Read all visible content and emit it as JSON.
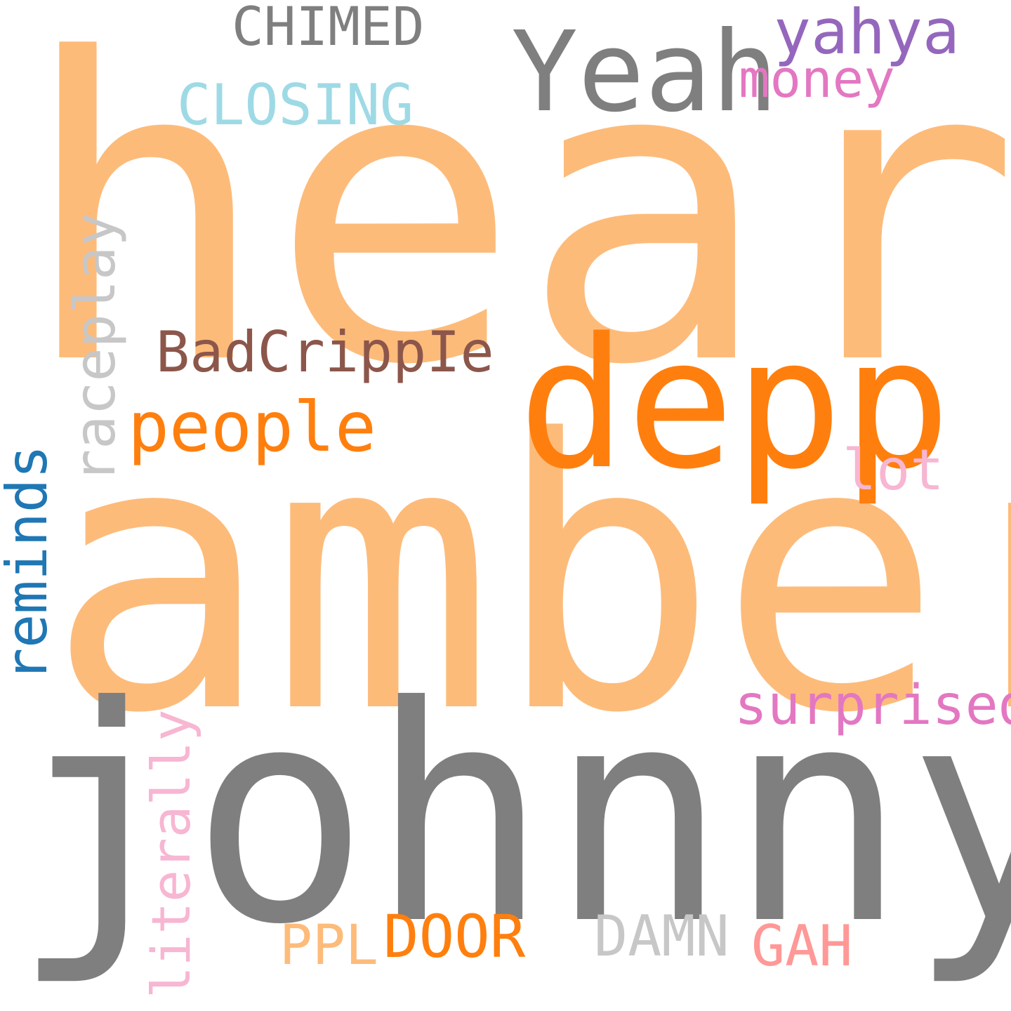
{
  "words": {
    "heard": {
      "text": "heard",
      "color": "#fdbb7a"
    },
    "amber": {
      "text": "amber",
      "color": "#fdbb7a"
    },
    "johnny": {
      "text": "johnny",
      "color": "#7f7f7f"
    },
    "depp": {
      "text": "depp",
      "color": "#ff7f0e"
    },
    "yeah": {
      "text": "Yeah",
      "color": "#7f7f7f"
    },
    "chimed": {
      "text": "CHIMED",
      "color": "#7f7f7f"
    },
    "yahya": {
      "text": "yahya",
      "color": "#9467bd"
    },
    "money": {
      "text": "money",
      "color": "#e377c2"
    },
    "closing": {
      "text": "CLOSING",
      "color": "#9edae5"
    },
    "badcripple": {
      "text": "BadCrippIe",
      "color": "#8c564b"
    },
    "people": {
      "text": "people",
      "color": "#ff7f0e"
    },
    "raceplay": {
      "text": "raceplay",
      "color": "#c7c7c7"
    },
    "lot": {
      "text": "lot",
      "color": "#f7b6d2"
    },
    "reminds": {
      "text": "reminds",
      "color": "#1f77b4"
    },
    "surprised": {
      "text": "surprised",
      "color": "#e377c2"
    },
    "literally": {
      "text": "literally",
      "color": "#f7b6d2"
    },
    "ppl": {
      "text": "PPL",
      "color": "#fdbb7a"
    },
    "door": {
      "text": "DOOR",
      "color": "#ff7f0e"
    },
    "damn": {
      "text": "DAMN",
      "color": "#c7c7c7"
    },
    "gah": {
      "text": "GAH",
      "color": "#ff9896"
    }
  }
}
